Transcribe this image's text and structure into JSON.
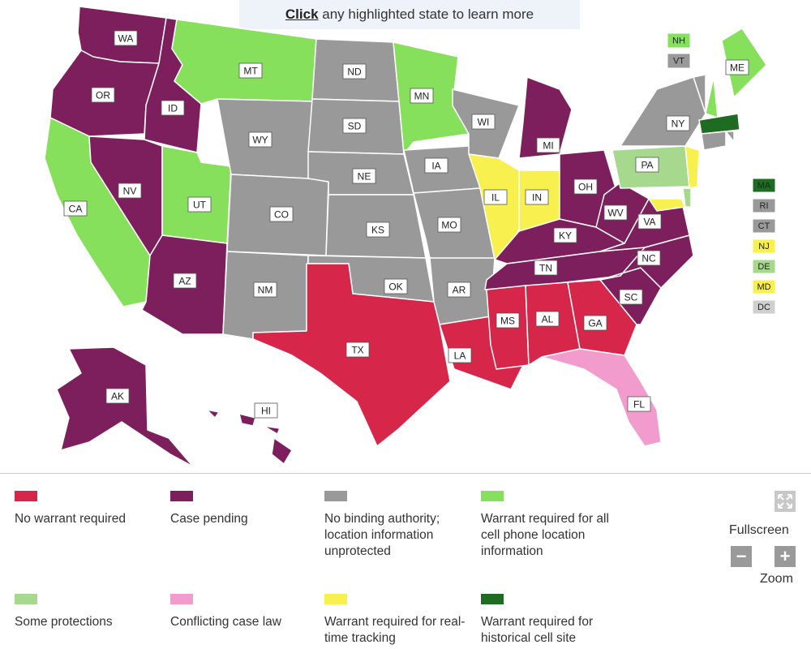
{
  "banner": {
    "click": "Click",
    "rest": " any highlighted state to learn more"
  },
  "colors": {
    "no_warrant": "#d6264a",
    "case_pending": "#7d1f5c",
    "no_binding": "#999999",
    "warrant_all": "#86e05c",
    "some_protections": "#a6d98e",
    "conflicting": "#f19ccd",
    "real_time": "#f7f04e",
    "historical": "#1e6b22",
    "dc": "#cfcfcf"
  },
  "states": [
    {
      "id": "WA",
      "label": "WA",
      "cat": "case_pending"
    },
    {
      "id": "OR",
      "label": "OR",
      "cat": "case_pending"
    },
    {
      "id": "CA",
      "label": "CA",
      "cat": "warrant_all"
    },
    {
      "id": "ID",
      "label": "ID",
      "cat": "case_pending"
    },
    {
      "id": "NV",
      "label": "NV",
      "cat": "case_pending"
    },
    {
      "id": "UT",
      "label": "UT",
      "cat": "warrant_all"
    },
    {
      "id": "AZ",
      "label": "AZ",
      "cat": "case_pending"
    },
    {
      "id": "MT",
      "label": "MT",
      "cat": "warrant_all"
    },
    {
      "id": "WY",
      "label": "WY",
      "cat": "no_binding"
    },
    {
      "id": "CO",
      "label": "CO",
      "cat": "no_binding"
    },
    {
      "id": "NM",
      "label": "NM",
      "cat": "no_binding"
    },
    {
      "id": "ND",
      "label": "ND",
      "cat": "no_binding"
    },
    {
      "id": "SD",
      "label": "SD",
      "cat": "no_binding"
    },
    {
      "id": "NE",
      "label": "NE",
      "cat": "no_binding"
    },
    {
      "id": "KS",
      "label": "KS",
      "cat": "no_binding"
    },
    {
      "id": "OK",
      "label": "OK",
      "cat": "no_binding"
    },
    {
      "id": "TX",
      "label": "TX",
      "cat": "no_warrant"
    },
    {
      "id": "MN",
      "label": "MN",
      "cat": "warrant_all"
    },
    {
      "id": "IA",
      "label": "IA",
      "cat": "no_binding"
    },
    {
      "id": "MO",
      "label": "MO",
      "cat": "no_binding"
    },
    {
      "id": "AR",
      "label": "AR",
      "cat": "no_binding"
    },
    {
      "id": "LA",
      "label": "LA",
      "cat": "no_warrant"
    },
    {
      "id": "WI",
      "label": "WI",
      "cat": "no_binding"
    },
    {
      "id": "IL",
      "label": "IL",
      "cat": "real_time"
    },
    {
      "id": "MI",
      "label": "MI",
      "cat": "case_pending"
    },
    {
      "id": "IN",
      "label": "IN",
      "cat": "real_time"
    },
    {
      "id": "OH",
      "label": "OH",
      "cat": "case_pending"
    },
    {
      "id": "KY",
      "label": "KY",
      "cat": "case_pending"
    },
    {
      "id": "TN",
      "label": "TN",
      "cat": "case_pending"
    },
    {
      "id": "MS",
      "label": "MS",
      "cat": "no_warrant"
    },
    {
      "id": "AL",
      "label": "AL",
      "cat": "no_warrant"
    },
    {
      "id": "GA",
      "label": "GA",
      "cat": "no_warrant"
    },
    {
      "id": "FL",
      "label": "FL",
      "cat": "conflicting"
    },
    {
      "id": "SC",
      "label": "SC",
      "cat": "case_pending"
    },
    {
      "id": "NC",
      "label": "NC",
      "cat": "case_pending"
    },
    {
      "id": "VA",
      "label": "VA",
      "cat": "case_pending"
    },
    {
      "id": "WV",
      "label": "WV",
      "cat": "case_pending"
    },
    {
      "id": "PA",
      "label": "PA",
      "cat": "some_protections"
    },
    {
      "id": "NY",
      "label": "NY",
      "cat": "no_binding"
    },
    {
      "id": "ME",
      "label": "ME",
      "cat": "warrant_all"
    },
    {
      "id": "AK",
      "label": "AK",
      "cat": "case_pending"
    },
    {
      "id": "HI",
      "label": "HI",
      "cat": "case_pending"
    }
  ],
  "small_states": [
    {
      "id": "NH",
      "label": "NH",
      "cat": "warrant_all"
    },
    {
      "id": "VT",
      "label": "VT",
      "cat": "no_binding"
    },
    {
      "id": "MA",
      "label": "MA",
      "cat": "historical"
    },
    {
      "id": "RI",
      "label": "RI",
      "cat": "no_binding"
    },
    {
      "id": "CT",
      "label": "CT",
      "cat": "no_binding"
    },
    {
      "id": "NJ",
      "label": "NJ",
      "cat": "real_time"
    },
    {
      "id": "DE",
      "label": "DE",
      "cat": "some_protections"
    },
    {
      "id": "MD",
      "label": "MD",
      "cat": "real_time"
    },
    {
      "id": "DC",
      "label": "DC",
      "cat": "dc"
    }
  ],
  "legend": [
    {
      "cat": "no_warrant",
      "text": "No warrant required"
    },
    {
      "cat": "case_pending",
      "text": "Case pending"
    },
    {
      "cat": "no_binding",
      "text": "No binding authority; location information unprotected"
    },
    {
      "cat": "warrant_all",
      "text": "Warrant required for all cell phone location information"
    },
    {
      "cat": "some_protections",
      "text": "Some protections"
    },
    {
      "cat": "conflicting",
      "text": "Conflicting case law"
    },
    {
      "cat": "real_time",
      "text": "Warrant required for real-time tracking"
    },
    {
      "cat": "historical",
      "text": "Warrant required for historical cell site"
    }
  ],
  "controls": {
    "fullscreen_label": "Fullscreen",
    "zoom_label": "Zoom",
    "zoom_out": "−",
    "zoom_in": "+",
    "fullscreen_icon": "expand-arrows-icon"
  }
}
